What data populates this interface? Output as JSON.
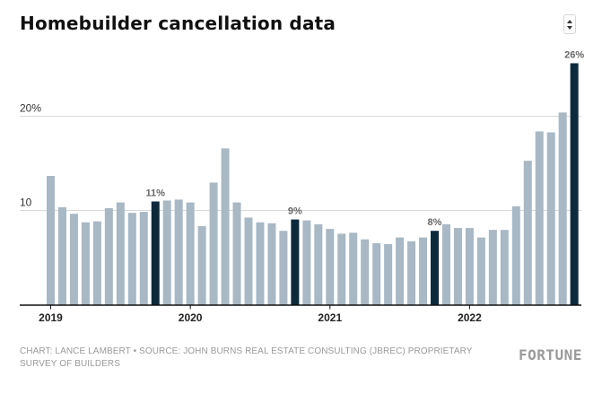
{
  "title": "Homebuilder cancellation data",
  "sort_button": {
    "icon": "sort-icon"
  },
  "footer": {
    "credit": "CHART: LANCE LAMBERT • SOURCE: JOHN BURNS REAL ESTATE CONSULTING (JBREC) PROPRIETARY SURVEY OF BUILDERS",
    "brand": "FORTUNE"
  },
  "colors": {
    "bar": "#a8b8c4",
    "highlight": "#0d2a3d",
    "grid": "#d9d9d9",
    "axis": "#111111",
    "label": "#666666"
  },
  "chart_data": {
    "type": "bar",
    "ylim": [
      0,
      27
    ],
    "y_ticks": [
      {
        "value": 10,
        "label": "10"
      },
      {
        "value": 20,
        "label": "20%"
      }
    ],
    "x_ticks": [
      {
        "index": 0,
        "label": "2019"
      },
      {
        "index": 12,
        "label": "2020"
      },
      {
        "index": 24,
        "label": "2021"
      },
      {
        "index": 36,
        "label": "2022"
      }
    ],
    "values": [
      13.6,
      10.3,
      9.6,
      8.7,
      8.8,
      10.2,
      10.8,
      9.7,
      9.8,
      10.9,
      11.0,
      11.1,
      10.8,
      8.3,
      12.9,
      16.5,
      10.8,
      9.2,
      8.7,
      8.6,
      7.8,
      9.0,
      8.9,
      8.5,
      8.0,
      7.5,
      7.6,
      6.9,
      6.5,
      6.4,
      7.1,
      6.7,
      7.1,
      7.8,
      8.5,
      8.1,
      8.1,
      7.1,
      7.9,
      7.9,
      10.4,
      15.2,
      18.3,
      18.2,
      20.3,
      25.5
    ],
    "highlights": [
      9,
      21,
      33,
      45
    ],
    "data_labels": [
      {
        "index": 9,
        "text": "11%"
      },
      {
        "index": 21,
        "text": "9%"
      },
      {
        "index": 33,
        "text": "8%"
      },
      {
        "index": 45,
        "text": "26%"
      }
    ]
  }
}
